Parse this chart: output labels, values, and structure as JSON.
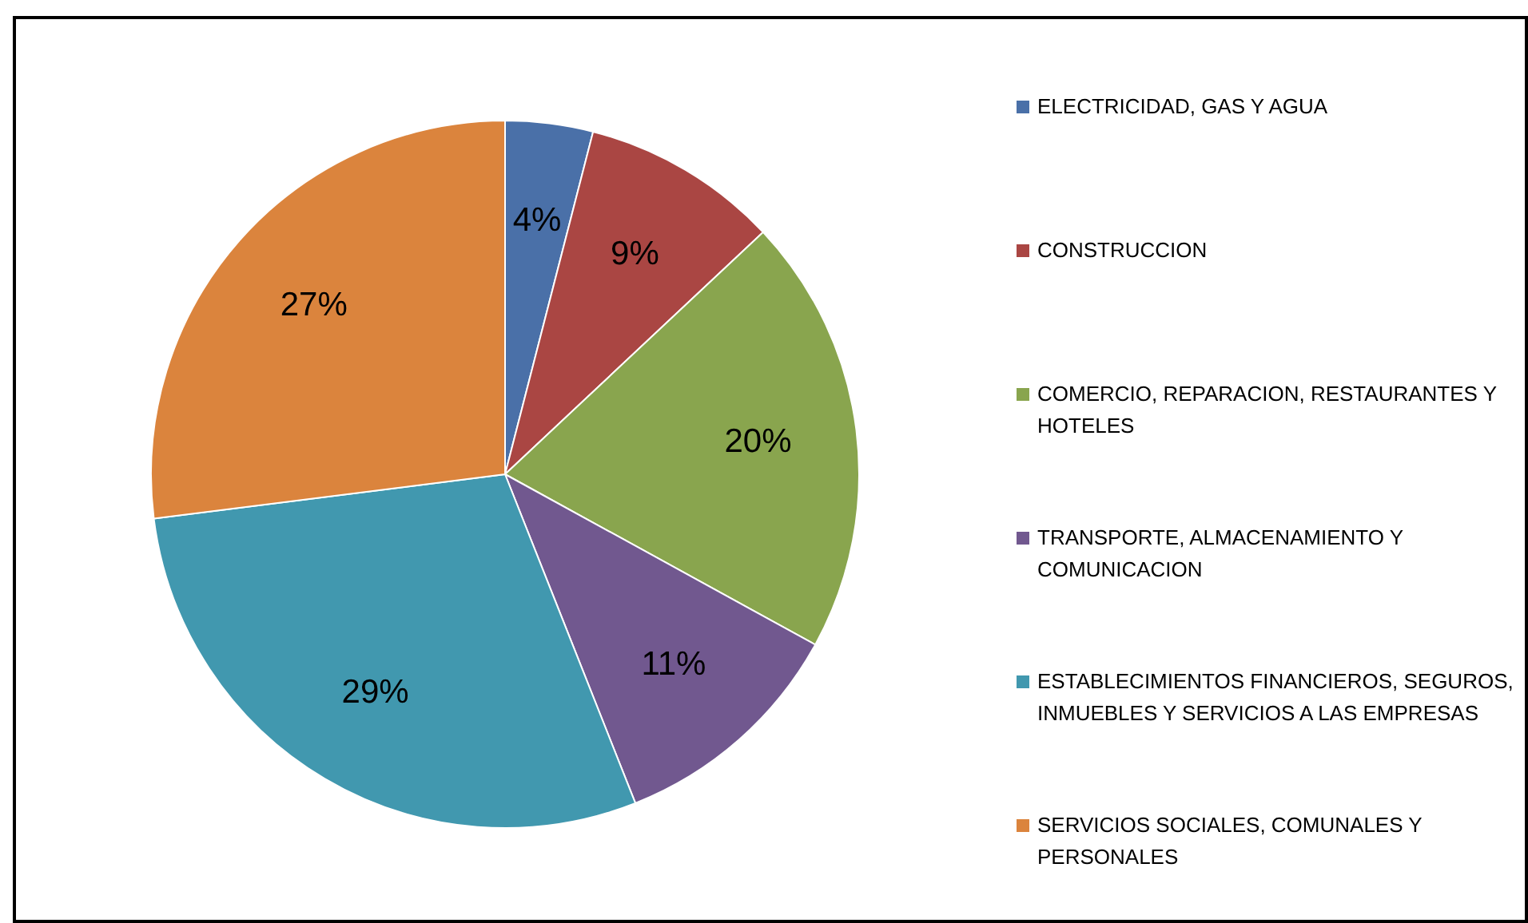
{
  "chart_data": {
    "type": "pie",
    "categories": [
      "ELECTRICIDAD, GAS Y AGUA",
      "CONSTRUCCION",
      "COMERCIO, REPARACION, RESTAURANTES Y HOTELES",
      "TRANSPORTE, ALMACENAMIENTO Y COMUNICACION",
      "ESTABLECIMIENTOS FINANCIEROS, SEGUROS, INMUEBLES Y SERVICIOS A LAS EMPRESAS",
      "SERVICIOS SOCIALES, COMUNALES Y PERSONALES"
    ],
    "values": [
      4,
      9,
      20,
      11,
      29,
      27
    ],
    "colors": [
      "#4a70a8",
      "#aa4643",
      "#89a54e",
      "#71588f",
      "#4198af",
      "#db843d"
    ],
    "value_labels": [
      "4%",
      "9%",
      "20%",
      "11%",
      "29%",
      "27%"
    ],
    "legend": "right"
  }
}
